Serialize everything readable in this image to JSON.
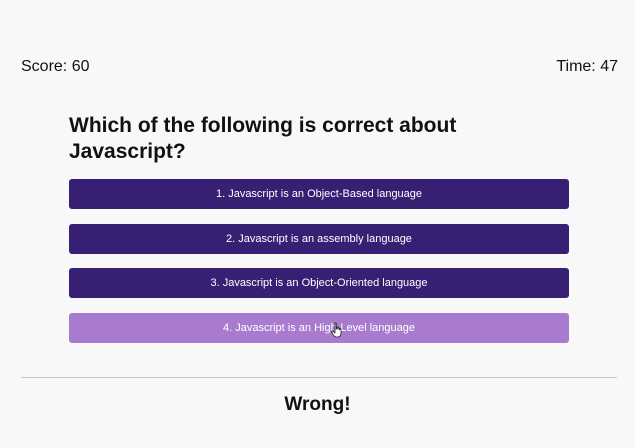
{
  "header": {
    "score": "Score: 60",
    "time": "Time: 47"
  },
  "question": {
    "text": "Which of the following is correct about Javascript?"
  },
  "answers": [
    {
      "label": "1. Javascript is an Object-Based language"
    },
    {
      "label": "2. Javascript is an assembly language"
    },
    {
      "label": "3. Javascript is an Object-Oriented language"
    },
    {
      "label": "4. Javascript is an High-Level language"
    }
  ],
  "result": {
    "text": "Wrong!"
  },
  "colors": {
    "answer_bg": "#371f73",
    "answer_hover_bg": "#a97bcf",
    "text": "#111111"
  },
  "icons": {
    "cursor": "hand-pointer-icon"
  }
}
